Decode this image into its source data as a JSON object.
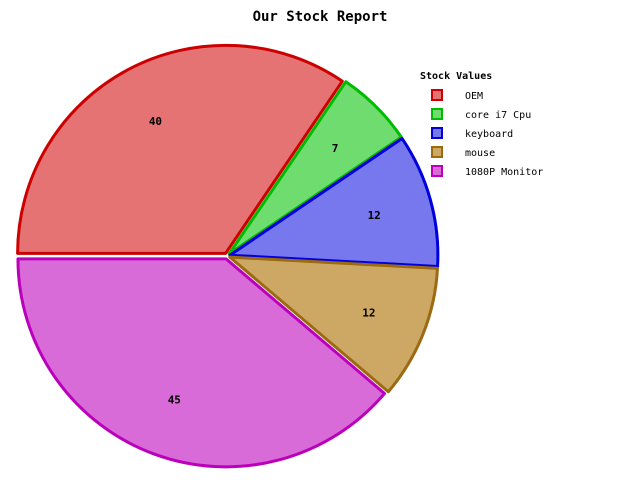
{
  "chart_data": {
    "type": "pie",
    "title": "Our Stock Report",
    "legend_title": "Stock Values",
    "legend_position": "right",
    "slices": [
      {
        "label": "OEM",
        "value": 40,
        "fill": "#e57373",
        "stroke": "#cc0000"
      },
      {
        "label": "core i7 Cpu",
        "value": 7,
        "fill": "#6fdc6f",
        "stroke": "#00bb00"
      },
      {
        "label": "keyboard",
        "value": 12,
        "fill": "#7878ee",
        "stroke": "#0000dd"
      },
      {
        "label": "mouse",
        "value": 12,
        "fill": "#cda864",
        "stroke": "#9c6a10"
      },
      {
        "label": "1080P Monitor",
        "value": 45,
        "fill": "#d96bd9",
        "stroke": "#bb00bb"
      }
    ]
  }
}
